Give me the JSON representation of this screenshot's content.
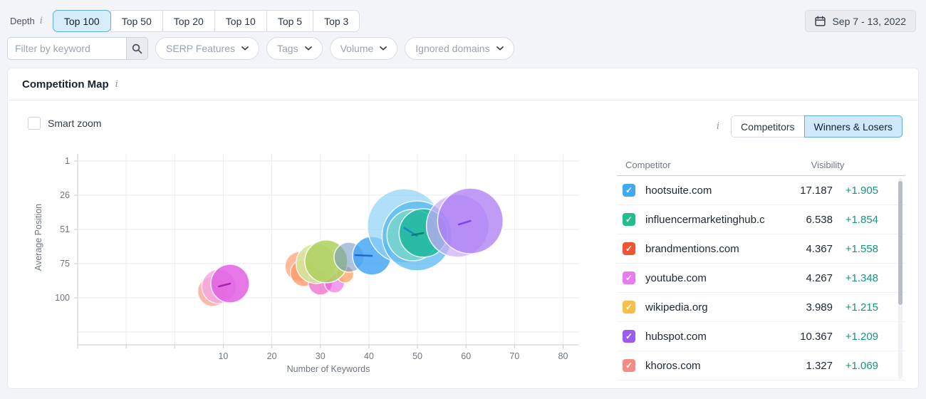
{
  "icons": {
    "info": "i",
    "check": "✓"
  },
  "toolbar": {
    "depth_label": "Depth",
    "depth_options": [
      {
        "label": "Top 100",
        "selected": true
      },
      {
        "label": "Top 50",
        "selected": false
      },
      {
        "label": "Top 20",
        "selected": false
      },
      {
        "label": "Top 10",
        "selected": false
      },
      {
        "label": "Top 5",
        "selected": false
      },
      {
        "label": "Top 3",
        "selected": false
      }
    ],
    "date_range": "Sep 7 - 13, 2022",
    "filter_placeholder": "Filter by keyword",
    "filter_dropdowns": [
      "SERP Features",
      "Tags",
      "Volume",
      "Ignored domains"
    ]
  },
  "panel": {
    "title": "Competition Map",
    "smart_zoom_label": "Smart zoom",
    "view_toggle": [
      {
        "label": "Competitors",
        "selected": false
      },
      {
        "label": "Winners & Losers",
        "selected": true
      }
    ]
  },
  "table": {
    "columns": [
      "Competitor",
      "Visibility"
    ],
    "delta_color": "#12977c",
    "rows": [
      {
        "domain": "hootsuite.com",
        "checkbox_color": "#41a9f0",
        "visibility": "17.187",
        "delta": "+1.905"
      },
      {
        "domain": "influencermarketinghub.c",
        "checkbox_color": "#21bf8c",
        "visibility": "6.538",
        "delta": "+1.854"
      },
      {
        "domain": "brandmentions.com",
        "checkbox_color": "#f15335",
        "visibility": "4.367",
        "delta": "+1.558"
      },
      {
        "domain": "youtube.com",
        "checkbox_color": "#ea7af2",
        "visibility": "4.267",
        "delta": "+1.348"
      },
      {
        "domain": "wikipedia.org",
        "checkbox_color": "#f7bf4a",
        "visibility": "3.989",
        "delta": "+1.215"
      },
      {
        "domain": "hubspot.com",
        "checkbox_color": "#9c5cf2",
        "visibility": "10.367",
        "delta": "+1.209"
      },
      {
        "domain": "khoros.com",
        "checkbox_color": "#f58b85",
        "visibility": "1.327",
        "delta": "+1.069"
      }
    ]
  },
  "chart_data": {
    "type": "scatter",
    "subtype": "bubble-winners-losers",
    "title": "Competition Map",
    "xlabel": "Number of Keywords",
    "ylabel": "Average Position",
    "x_ticks": [
      10,
      20,
      30,
      40,
      50,
      60,
      70,
      80
    ],
    "y_ticks": [
      {
        "v": 1,
        "label": "1"
      },
      {
        "v": 26,
        "label": "26"
      },
      {
        "v": 51,
        "label": "51"
      },
      {
        "v": 76,
        "label": "75"
      },
      {
        "v": 101,
        "label": "100"
      },
      {
        "v": 126,
        "label": ""
      }
    ],
    "x_range": [
      -20,
      83.3
    ],
    "y_range": [
      -4.2,
      135.4
    ],
    "y_inverted": true,
    "grid": true,
    "bubbles": [
      {
        "name": "khoros.com",
        "fill": "#fbab9f",
        "x": 7.8,
        "y": 96.3,
        "r": 21,
        "opacity": 0.85
      },
      {
        "name": "youtube.com-before",
        "fill": "#f2a6e3",
        "x": 9.1,
        "y": 92.7,
        "r": 24,
        "opacity": 0.8
      },
      {
        "name": "youtube.com-after",
        "fill": "#e160e2",
        "x": 11.4,
        "y": 90.6,
        "r": 27,
        "opacity": 0.85,
        "trend_from": [
          9.1,
          92.7
        ],
        "trend_color": "#a21caf"
      },
      {
        "name": "brandmentions.com-before",
        "fill": "#ffb28f",
        "x": 25.8,
        "y": 78.1,
        "r": 21,
        "opacity": 0.9
      },
      {
        "name": "brandmentions.com-after",
        "fill": "#ff9a6b",
        "x": 26.6,
        "y": 82.8,
        "r": 19,
        "opacity": 0.8
      },
      {
        "name": "other-pink-1",
        "fill": "#ee5fc4",
        "x": 30,
        "y": 90.1,
        "r": 17,
        "opacity": 0.7
      },
      {
        "name": "other-pink-2",
        "fill": "#e95ce2",
        "x": 32.9,
        "y": 90.1,
        "r": 14,
        "opacity": 0.6
      },
      {
        "name": "other-orange",
        "fill": "#ffa668",
        "x": 35.1,
        "y": 83.8,
        "r": 12,
        "opacity": 0.8
      },
      {
        "name": "wikipedia.org-before",
        "fill": "#d6e69c",
        "x": 29.1,
        "y": 76,
        "r": 28,
        "opacity": 0.9
      },
      {
        "name": "wikipedia.org-after",
        "fill": "#aed05e",
        "x": 31.2,
        "y": 74.4,
        "r": 30,
        "opacity": 0.85
      },
      {
        "name": "other-slate",
        "fill": "#6d94bf",
        "x": 35.9,
        "y": 71.3,
        "r": 21,
        "opacity": 0.55
      },
      {
        "name": "other-blue-after",
        "fill": "#3da2f5",
        "x": 40.6,
        "y": 70.3,
        "r": 27,
        "opacity": 0.8,
        "trend_from": [
          37.2,
          69.8
        ],
        "trend_color": "#1d62c4"
      },
      {
        "name": "hootsuite.com-before",
        "fill": "#8fd2f7",
        "x": 47.3,
        "y": 48.4,
        "r": 52,
        "opacity": 0.7
      },
      {
        "name": "hootsuite.com-after",
        "fill": "#4fb5f0",
        "x": 49.9,
        "y": 55.7,
        "r": 49,
        "opacity": 0.7,
        "trend_from": [
          47.3,
          50
        ],
        "trend_color": "#1d7dc4"
      },
      {
        "name": "influencermarketinghub-before",
        "fill": "#79d6c5",
        "x": 49,
        "y": 55.2,
        "r": 36,
        "opacity": 0.75
      },
      {
        "name": "influencermarketinghub-after",
        "fill": "#17b59a",
        "x": 51.2,
        "y": 53.6,
        "r": 34,
        "opacity": 0.8,
        "trend_from": [
          48.9,
          55.2
        ],
        "trend_color": "#0b7c69"
      },
      {
        "name": "hubspot.com-before",
        "fill": "#cba9f8",
        "x": 58.3,
        "y": 48.4,
        "r": 44,
        "opacity": 0.7
      },
      {
        "name": "hubspot.com-after",
        "fill": "#aa7cf4",
        "x": 60.9,
        "y": 44.8,
        "r": 46,
        "opacity": 0.75,
        "trend_from": [
          58.5,
          47.4
        ],
        "trend_color": "#7c3aed"
      }
    ]
  }
}
